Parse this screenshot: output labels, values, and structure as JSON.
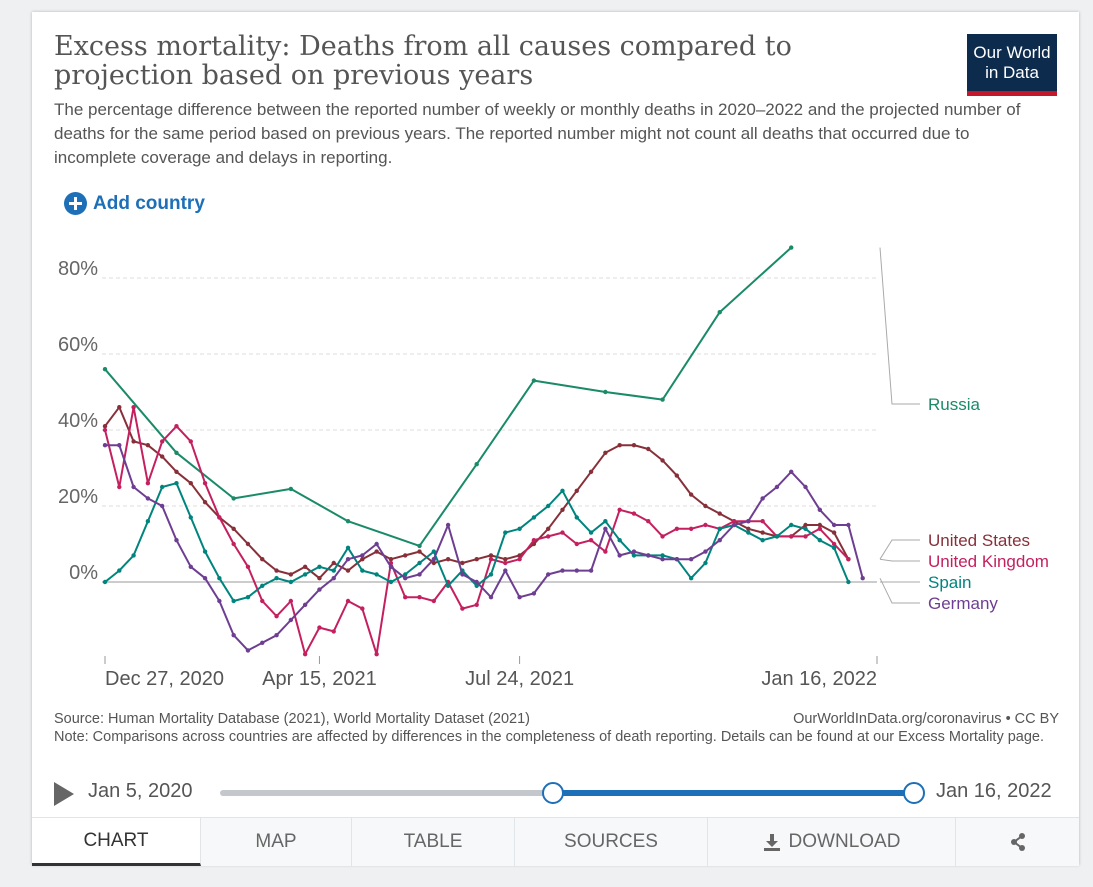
{
  "header": {
    "title": "Excess mortality: Deaths from all causes compared to projection based on previous years",
    "subtitle": "The percentage difference between the reported number of weekly or monthly deaths in 2020–2022 and the projected number of deaths for the same period based on previous years. The reported number might not count all deaths that occurred due to incomplete coverage and delays in reporting.",
    "logo_line1": "Our World",
    "logo_line2": "in Data"
  },
  "controls": {
    "add_country_label": "Add country"
  },
  "chart_data": {
    "type": "line",
    "title": "Excess mortality: Deaths from all causes compared to projection based on previous years",
    "xlabel": "",
    "ylabel": "",
    "ylim": [
      -20,
      90
    ],
    "y_ticks": [
      0,
      20,
      40,
      60,
      80
    ],
    "y_tick_labels": [
      "0%",
      "20%",
      "40%",
      "60%",
      "80%"
    ],
    "x_ticks": [
      0,
      15,
      29,
      54
    ],
    "x_tick_labels": [
      "Dec 27, 2020",
      "Apr 15, 2021",
      "Jul 24, 2021",
      "Jan 16, 2022"
    ],
    "x_range": [
      0,
      54
    ],
    "series": [
      {
        "name": "Russia",
        "color": "#1a8a68",
        "x": [
          0,
          5,
          9,
          13,
          17,
          22,
          26,
          30,
          35,
          39,
          43,
          48
        ],
        "values": [
          56,
          34,
          22,
          24.5,
          16,
          9.5,
          31,
          53,
          50,
          48,
          71,
          88
        ]
      },
      {
        "name": "United States",
        "color": "#883039",
        "x": [
          0,
          1,
          2,
          3,
          4,
          5,
          6,
          7,
          8,
          9,
          10,
          11,
          12,
          13,
          14,
          15,
          16,
          17,
          18,
          19,
          20,
          21,
          22,
          23,
          24,
          25,
          26,
          27,
          28,
          29,
          30,
          31,
          32,
          33,
          34,
          35,
          36,
          37,
          38,
          39,
          40,
          41,
          42,
          43,
          44,
          45,
          46,
          47,
          48,
          49,
          50,
          51,
          52
        ],
        "values": [
          41,
          46,
          37,
          36,
          33,
          29,
          26,
          21,
          17,
          14,
          10,
          6,
          3,
          2,
          4,
          1,
          5,
          3,
          6,
          8,
          6,
          7,
          8,
          5,
          6,
          5,
          6,
          7,
          6,
          7,
          10,
          14,
          19,
          24,
          29,
          34,
          36,
          36,
          35,
          32,
          28,
          23,
          20,
          18,
          16,
          14,
          13,
          12,
          12,
          15,
          15,
          13,
          6
        ]
      },
      {
        "name": "United Kingdom",
        "color": "#c4205f",
        "x": [
          0,
          1,
          2,
          3,
          4,
          5,
          6,
          7,
          8,
          9,
          10,
          11,
          12,
          13,
          14,
          15,
          16,
          17,
          18,
          19,
          20,
          21,
          22,
          23,
          24,
          25,
          26,
          27,
          28,
          29,
          30,
          31,
          32,
          33,
          34,
          35,
          36,
          37,
          38,
          39,
          40,
          41,
          42,
          43,
          44,
          45,
          46,
          47,
          48,
          49,
          50,
          51,
          52
        ],
        "values": [
          40,
          25,
          46,
          26,
          37,
          41,
          37,
          26,
          17,
          10,
          4,
          -5,
          -9,
          -5,
          -19,
          -12,
          -13,
          -5,
          -7,
          -19,
          5,
          -4,
          -4,
          -5,
          0,
          -7,
          -6,
          6,
          5,
          6,
          11,
          12,
          13,
          10,
          11,
          8,
          19,
          18,
          16,
          12,
          14,
          14,
          15,
          14,
          16,
          16,
          16,
          12,
          12,
          12,
          14,
          10,
          6
        ]
      },
      {
        "name": "Spain",
        "color": "#00847e",
        "x": [
          0,
          1,
          2,
          3,
          4,
          5,
          6,
          7,
          8,
          9,
          10,
          11,
          12,
          13,
          14,
          15,
          16,
          17,
          18,
          19,
          20,
          21,
          22,
          23,
          24,
          25,
          26,
          27,
          28,
          29,
          30,
          31,
          32,
          33,
          34,
          35,
          36,
          37,
          38,
          39,
          40,
          41,
          42,
          43,
          44,
          45,
          46,
          47,
          48,
          49,
          50,
          51,
          52
        ],
        "values": [
          0,
          3,
          7,
          16,
          25,
          26,
          17,
          8,
          1,
          -5,
          -4,
          -1,
          1,
          0,
          2,
          4,
          3,
          9,
          3,
          2,
          0,
          2,
          5,
          8,
          -1,
          3,
          -1,
          2,
          13,
          14,
          17,
          20,
          24,
          17,
          13,
          16,
          11,
          7,
          7,
          7,
          6,
          1,
          5,
          14,
          15,
          13,
          11,
          12,
          15,
          14,
          11,
          9,
          0
        ]
      },
      {
        "name": "Germany",
        "color": "#6d3e91",
        "x": [
          0,
          1,
          2,
          3,
          4,
          5,
          6,
          7,
          8,
          9,
          10,
          11,
          12,
          13,
          14,
          15,
          16,
          17,
          18,
          19,
          20,
          21,
          22,
          23,
          24,
          25,
          26,
          27,
          28,
          29,
          30,
          31,
          32,
          33,
          34,
          35,
          36,
          37,
          38,
          39,
          40,
          41,
          42,
          43,
          44,
          45,
          46,
          47,
          48,
          49,
          50,
          51,
          52,
          53
        ],
        "values": [
          36,
          36,
          25,
          22,
          20,
          11,
          4,
          1,
          -5,
          -14,
          -18,
          -16,
          -14,
          -10,
          -6,
          -2,
          1,
          6,
          7,
          10,
          4,
          1,
          2,
          6,
          15,
          2,
          0,
          -4,
          3,
          -4,
          -3,
          2,
          3,
          3,
          3,
          14,
          7,
          8,
          7,
          6,
          6,
          6,
          8,
          11,
          15,
          16,
          22,
          25,
          29,
          25,
          19,
          15,
          15,
          1
        ]
      }
    ],
    "legend_labels": [
      "Russia",
      "United States",
      "United Kingdom",
      "Spain",
      "Germany"
    ],
    "legend_position": "right"
  },
  "footer": {
    "source": "Source: Human Mortality Database (2021), World Mortality Dataset (2021)",
    "credit": "OurWorldInData.org/coronavirus • CC BY",
    "note": "Note: Comparisons across countries are affected by differences in the completeness of death reporting. Details can be found at our Excess Mortality page."
  },
  "timeline": {
    "start_label": "Jan 5, 2020",
    "end_label": "Jan 16, 2022",
    "selected_start_fraction": 0.48,
    "selected_end_fraction": 1.0
  },
  "tabs": [
    {
      "label": "CHART",
      "active": true
    },
    {
      "label": "MAP",
      "active": false
    },
    {
      "label": "TABLE",
      "active": false
    },
    {
      "label": "SOURCES",
      "active": false
    },
    {
      "label": "DOWNLOAD",
      "active": false
    },
    {
      "label": "",
      "active": false
    }
  ]
}
